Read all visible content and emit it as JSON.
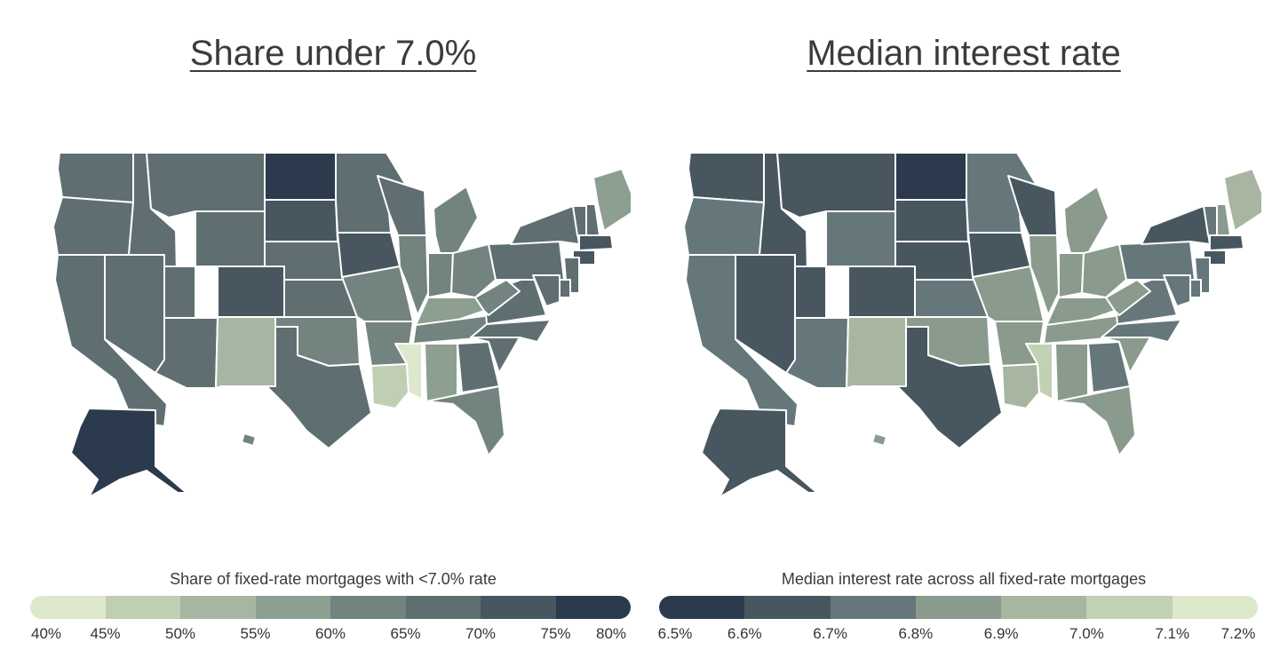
{
  "panels": [
    {
      "title": "Share under 7.0%",
      "legend_title": "Share of fixed-rate mortgages with <7.0% rate",
      "legend_colors": [
        "#dde8cc",
        "#c0cfb4",
        "#a6b6a2",
        "#8d9f90",
        "#738380",
        "#5e6e71",
        "#485660",
        "#2c3a4e"
      ],
      "legend_ticks": [
        "40%",
        "45%",
        "50%",
        "55%",
        "60%",
        "65%",
        "70%",
        "75%",
        "80%"
      ],
      "states": {
        "WA": 6,
        "OR": 6,
        "CA": 6,
        "ID": 6,
        "NV": 6,
        "MT": 6,
        "WY": 6,
        "UT": 6,
        "AZ": 6,
        "CO": 7,
        "NM": 3,
        "ND": 8,
        "SD": 7,
        "NE": 6,
        "KS": 6,
        "OK": 5,
        "TX": 6,
        "MN": 6,
        "IA": 7,
        "MO": 5,
        "AR": 5,
        "LA": 2,
        "WI": 6,
        "IL": 5,
        "MI": 5,
        "IN": 5,
        "OH": 5,
        "KY": 4,
        "TN": 5,
        "MS": 1,
        "AL": 4,
        "GA": 6,
        "FL": 5,
        "SC": 6,
        "NC": 6,
        "VA": 6,
        "WV": 5,
        "PA": 6,
        "NY": 6,
        "VT": 6,
        "NH": 6,
        "ME": 4,
        "MA": 7,
        "CT": 7,
        "NJ": 6,
        "DE": 6,
        "MD": 6,
        "AK": 8,
        "HI": 5
      }
    },
    {
      "title": "Median interest rate",
      "legend_title": "Median interest rate across all fixed-rate mortgages",
      "legend_colors": [
        "#2c3a4e",
        "#485660",
        "#65777a",
        "#8a9b8d",
        "#a7b5a1",
        "#c2d1b6",
        "#dce8ca"
      ],
      "legend_ticks": [
        "6.5%",
        "6.6%",
        "6.7%",
        "6.8%",
        "6.9%",
        "7.0%",
        "7.1%",
        "7.2%"
      ],
      "states": {
        "WA": 2,
        "OR": 3,
        "CA": 3,
        "ID": 2,
        "NV": 2,
        "MT": 2,
        "WY": 3,
        "UT": 2,
        "AZ": 3,
        "CO": 2,
        "NM": 5,
        "ND": 1,
        "SD": 2,
        "NE": 2,
        "KS": 3,
        "OK": 4,
        "TX": 2,
        "MN": 3,
        "IA": 2,
        "MO": 4,
        "AR": 4,
        "LA": 5,
        "WI": 2,
        "IL": 4,
        "MI": 4,
        "IN": 4,
        "OH": 4,
        "KY": 4,
        "TN": 4,
        "MS": 6,
        "AL": 4,
        "GA": 3,
        "FL": 4,
        "SC": 4,
        "NC": 3,
        "VA": 3,
        "WV": 4,
        "PA": 3,
        "NY": 2,
        "VT": 3,
        "NH": 4,
        "ME": 5,
        "MA": 2,
        "CT": 2,
        "NJ": 3,
        "DE": 3,
        "MD": 3,
        "AK": 2,
        "HI": 4
      }
    }
  ]
}
